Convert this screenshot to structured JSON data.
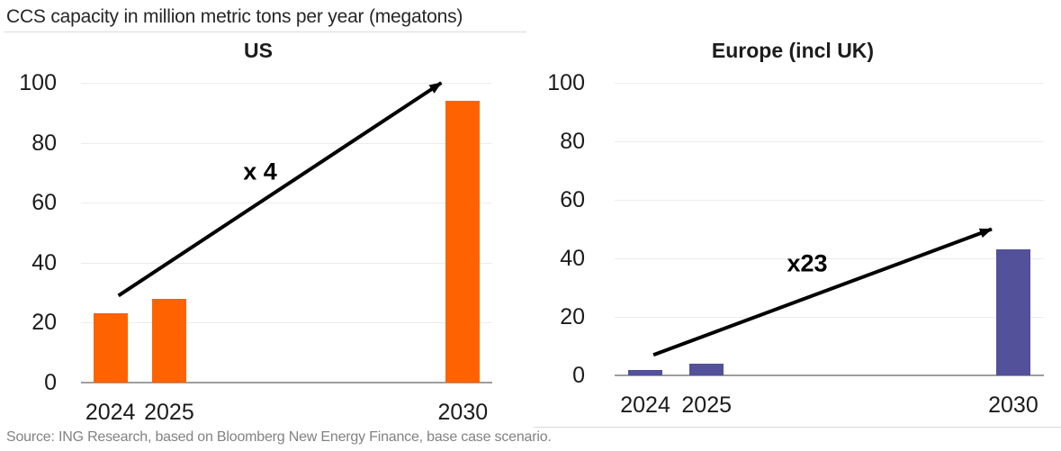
{
  "header": {
    "title": "CCS capacity in million metric tons per year (megatons)"
  },
  "footer": {
    "source": "Source: ING Research, based on Bloomberg New Energy Finance, base case scenario."
  },
  "chart_data": [
    {
      "type": "bar",
      "title": "US",
      "categories": [
        "2024",
        "2025",
        "2030"
      ],
      "values": [
        23,
        28,
        94
      ],
      "bar_color": "#FF6200",
      "xlabel": "",
      "ylabel": "",
      "ylim": [
        0,
        100
      ],
      "yticks": [
        0,
        20,
        40,
        60,
        80,
        100
      ],
      "grid": true,
      "legend": "none",
      "annotation": {
        "label": "x 4",
        "from_value": 29,
        "to_value": 100,
        "shape": "arrow"
      }
    },
    {
      "type": "bar",
      "title": "Europe (incl UK)",
      "categories": [
        "2024",
        "2025",
        "2030"
      ],
      "values": [
        2,
        4,
        43
      ],
      "bar_color": "#525199",
      "xlabel": "",
      "ylabel": "",
      "ylim": [
        0,
        100
      ],
      "yticks": [
        0,
        20,
        40,
        60,
        80,
        100
      ],
      "grid": true,
      "legend": "none",
      "annotation": {
        "label": "x23",
        "from_value": 7,
        "to_value": 50,
        "shape": "arrow"
      }
    }
  ],
  "colors": {
    "us_bar": "#FF6200",
    "europe_bar": "#525199",
    "arrow": "#000000",
    "gridline": "#ececec",
    "axis_line": "#9e9e9e",
    "divider": "#d9d9d9",
    "source_text": "#828282"
  }
}
